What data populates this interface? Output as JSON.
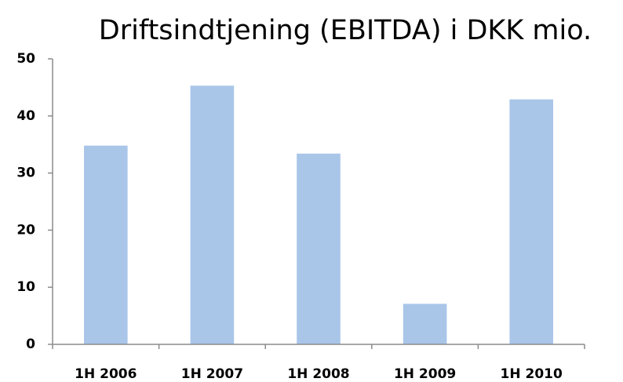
{
  "chart_data": {
    "type": "bar",
    "title": "Driftsindtjening (EBITDA) i DKK mio.",
    "categories": [
      "1H 2006",
      "1H 2007",
      "1H 2008",
      "1H 2009",
      "1H 2010"
    ],
    "values": [
      34.8,
      45.3,
      33.4,
      7.1,
      42.9
    ],
    "color": "#a9c6e9",
    "ylim": [
      0,
      50
    ],
    "yticks": [
      0,
      10,
      20,
      30,
      40,
      50
    ],
    "grid": false
  }
}
